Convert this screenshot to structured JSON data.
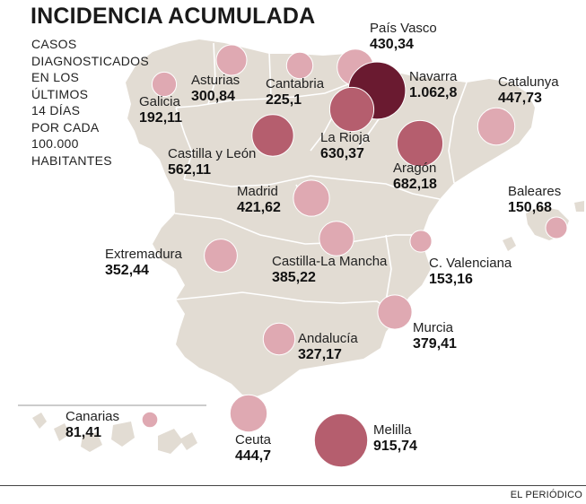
{
  "title": "INCIDENCIA ACUMULADA",
  "subtitle_lines": [
    "CASOS",
    "DIAGNOSTICADOS",
    "EN LOS",
    "ÚLTIMOS",
    "14 DÍAS",
    "POR CADA",
    "100.000",
    "HABITANTES"
  ],
  "source": "EL PERIÓDICO",
  "colors": {
    "land": "#e2dcd3",
    "border": "#ffffff",
    "low": "#dfa9b2",
    "mid": "#b55e6e",
    "high": "#8e2a40",
    "top": "#6a1a30"
  },
  "regions": [
    {
      "name": "País Vasco",
      "value": "430,34",
      "incidence": 430.34
    },
    {
      "name": "Navarra",
      "value": "1.062,8",
      "incidence": 1062.8
    },
    {
      "name": "Catalunya",
      "value": "447,73",
      "incidence": 447.73
    },
    {
      "name": "Asturias",
      "value": "300,84",
      "incidence": 300.84
    },
    {
      "name": "Cantabria",
      "value": "225,1",
      "incidence": 225.1
    },
    {
      "name": "Galicia",
      "value": "192,11",
      "incidence": 192.11
    },
    {
      "name": "La Rioja",
      "value": "630,37",
      "incidence": 630.37
    },
    {
      "name": "Castilla y León",
      "value": "562,11",
      "incidence": 562.11
    },
    {
      "name": "Aragón",
      "value": "682,18",
      "incidence": 682.18
    },
    {
      "name": "Madrid",
      "value": "421,62",
      "incidence": 421.62
    },
    {
      "name": "Baleares",
      "value": "150,68",
      "incidence": 150.68
    },
    {
      "name": "Extremadura",
      "value": "352,44",
      "incidence": 352.44
    },
    {
      "name": "Castilla-La Mancha",
      "value": "385,22",
      "incidence": 385.22
    },
    {
      "name": "C. Valenciana",
      "value": "153,16",
      "incidence": 153.16
    },
    {
      "name": "Murcia",
      "value": "379,41",
      "incidence": 379.41
    },
    {
      "name": "Andalucía",
      "value": "327,17",
      "incidence": 327.17
    },
    {
      "name": "Canarias",
      "value": "81,41",
      "incidence": 81.41
    },
    {
      "name": "Ceuta",
      "value": "444,7",
      "incidence": 444.7
    },
    {
      "name": "Melilla",
      "value": "915,74",
      "incidence": 915.74
    }
  ]
}
